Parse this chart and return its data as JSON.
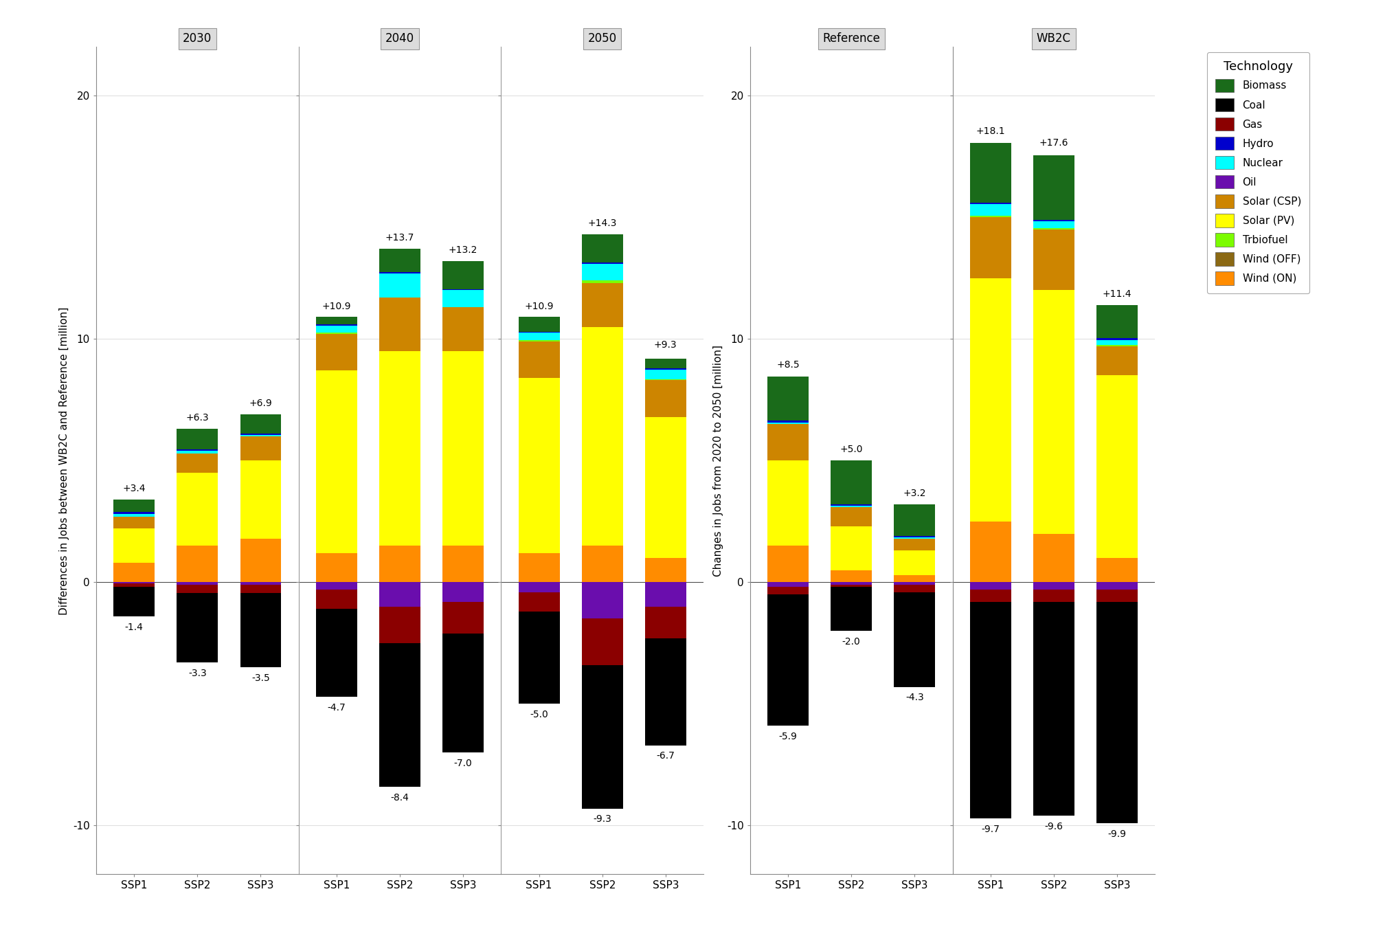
{
  "colors": {
    "Wind (ON)": "#FF8C00",
    "Solar (PV)": "#FFFF00",
    "Solar (CSP)": "#CD8500",
    "Wind (OFF)": "#8B6914",
    "Trbiofuel": "#7CFC00",
    "Nuclear": "#00FFFF",
    "Hydro": "#0000CD",
    "Oil": "#6A0DAD",
    "Gas": "#8B0000",
    "Coal": "#000000",
    "Biomass": "#1A6B1A"
  },
  "pos_tech_order": [
    "Wind (ON)",
    "Solar (PV)",
    "Solar (CSP)",
    "Wind (OFF)",
    "Trbiofuel",
    "Nuclear",
    "Hydro",
    "Biomass"
  ],
  "neg_tech_order": [
    "Oil",
    "Gas",
    "Coal"
  ],
  "panel_A": {
    "facets": [
      "2030",
      "2040",
      "2050"
    ],
    "groups": [
      "SSP1",
      "SSP2",
      "SSP3"
    ],
    "totals_pos": {
      "2030": [
        3.4,
        6.3,
        6.9
      ],
      "2040": [
        10.9,
        13.7,
        13.2
      ],
      "2050": [
        10.9,
        14.3,
        9.3
      ]
    },
    "totals_neg": {
      "2030": [
        -1.4,
        -3.3,
        -3.5
      ],
      "2040": [
        -4.7,
        -8.4,
        -7.0
      ],
      "2050": [
        -5.0,
        -9.3,
        -6.7
      ]
    },
    "pos_stacks": {
      "2030": {
        "SSP1": {
          "Wind (ON)": 0.8,
          "Solar (PV)": 1.4,
          "Solar (CSP)": 0.5,
          "Wind (OFF)": 0.0,
          "Trbiofuel": 0.0,
          "Nuclear": 0.1,
          "Hydro": 0.1,
          "Biomass": 0.5
        },
        "SSP2": {
          "Wind (ON)": 1.5,
          "Solar (PV)": 3.0,
          "Solar (CSP)": 0.8,
          "Wind (OFF)": 0.0,
          "Trbiofuel": 0.0,
          "Nuclear": 0.1,
          "Hydro": 0.05,
          "Biomass": 0.85
        },
        "SSP3": {
          "Wind (ON)": 1.8,
          "Solar (PV)": 3.2,
          "Solar (CSP)": 1.0,
          "Wind (OFF)": 0.0,
          "Trbiofuel": 0.0,
          "Nuclear": 0.05,
          "Hydro": 0.05,
          "Biomass": 0.8
        }
      },
      "2040": {
        "SSP1": {
          "Wind (ON)": 1.2,
          "Solar (PV)": 7.5,
          "Solar (CSP)": 1.5,
          "Wind (OFF)": 0.0,
          "Trbiofuel": 0.05,
          "Nuclear": 0.3,
          "Hydro": 0.05,
          "Biomass": 0.3
        },
        "SSP2": {
          "Wind (ON)": 1.5,
          "Solar (PV)": 8.0,
          "Solar (CSP)": 2.2,
          "Wind (OFF)": 0.0,
          "Trbiofuel": 0.0,
          "Nuclear": 1.0,
          "Hydro": 0.05,
          "Biomass": 0.95
        },
        "SSP3": {
          "Wind (ON)": 1.5,
          "Solar (PV)": 8.0,
          "Solar (CSP)": 1.8,
          "Wind (OFF)": 0.0,
          "Trbiofuel": 0.0,
          "Nuclear": 0.7,
          "Hydro": 0.05,
          "Biomass": 1.15
        }
      },
      "2050": {
        "SSP1": {
          "Wind (ON)": 1.2,
          "Solar (PV)": 7.2,
          "Solar (CSP)": 1.5,
          "Wind (OFF)": 0.0,
          "Trbiofuel": 0.05,
          "Nuclear": 0.3,
          "Hydro": 0.05,
          "Biomass": 0.6
        },
        "SSP2": {
          "Wind (ON)": 1.5,
          "Solar (PV)": 9.0,
          "Solar (CSP)": 1.8,
          "Wind (OFF)": 0.0,
          "Trbiofuel": 0.1,
          "Nuclear": 0.7,
          "Hydro": 0.05,
          "Biomass": 1.15
        },
        "SSP3": {
          "Wind (ON)": 1.0,
          "Solar (PV)": 5.8,
          "Solar (CSP)": 1.5,
          "Wind (OFF)": 0.0,
          "Trbiofuel": 0.05,
          "Nuclear": 0.4,
          "Hydro": 0.05,
          "Biomass": 0.4
        }
      }
    },
    "neg_stacks": {
      "2030": {
        "SSP1": {
          "Oil": -0.05,
          "Gas": -0.15,
          "Coal": -1.2
        },
        "SSP2": {
          "Oil": -0.1,
          "Gas": -0.35,
          "Coal": -2.85
        },
        "SSP3": {
          "Oil": -0.1,
          "Gas": -0.35,
          "Coal": -3.05
        }
      },
      "2040": {
        "SSP1": {
          "Oil": -0.3,
          "Gas": -0.8,
          "Coal": -3.6
        },
        "SSP2": {
          "Oil": -1.0,
          "Gas": -1.5,
          "Coal": -5.9
        },
        "SSP3": {
          "Oil": -0.8,
          "Gas": -1.3,
          "Coal": -4.9
        }
      },
      "2050": {
        "SSP1": {
          "Oil": -0.4,
          "Gas": -0.8,
          "Coal": -3.8
        },
        "SSP2": {
          "Oil": -1.5,
          "Gas": -1.9,
          "Coal": -5.9
        },
        "SSP3": {
          "Oil": -1.0,
          "Gas": -1.3,
          "Coal": -4.4
        }
      }
    }
  },
  "panel_B": {
    "facets": [
      "Reference",
      "WB2C"
    ],
    "groups": [
      "SSP1",
      "SSP2",
      "SSP3"
    ],
    "totals_pos": {
      "Reference": [
        8.5,
        5.0,
        3.2
      ],
      "WB2C": [
        18.1,
        17.6,
        11.4
      ]
    },
    "totals_neg": {
      "Reference": [
        -5.9,
        -2.0,
        -4.3
      ],
      "WB2C": [
        -9.7,
        -9.6,
        -9.9
      ]
    },
    "pos_stacks": {
      "Reference": {
        "SSP1": {
          "Wind (ON)": 1.5,
          "Solar (PV)": 3.5,
          "Solar (CSP)": 1.5,
          "Wind (OFF)": 0.0,
          "Trbiofuel": 0.0,
          "Nuclear": 0.05,
          "Hydro": 0.1,
          "Biomass": 1.8
        },
        "SSP2": {
          "Wind (ON)": 0.5,
          "Solar (PV)": 1.8,
          "Solar (CSP)": 0.8,
          "Wind (OFF)": 0.0,
          "Trbiofuel": 0.0,
          "Nuclear": 0.05,
          "Hydro": 0.05,
          "Biomass": 1.8
        },
        "SSP3": {
          "Wind (ON)": 0.3,
          "Solar (PV)": 1.0,
          "Solar (CSP)": 0.5,
          "Wind (OFF)": 0.0,
          "Trbiofuel": 0.0,
          "Nuclear": 0.05,
          "Hydro": 0.05,
          "Biomass": 1.3
        }
      },
      "WB2C": {
        "SSP1": {
          "Wind (ON)": 2.5,
          "Solar (PV)": 10.0,
          "Solar (CSP)": 2.5,
          "Wind (OFF)": 0.0,
          "Trbiofuel": 0.05,
          "Nuclear": 0.5,
          "Hydro": 0.05,
          "Biomass": 2.45
        },
        "SSP2": {
          "Wind (ON)": 2.0,
          "Solar (PV)": 10.0,
          "Solar (CSP)": 2.5,
          "Wind (OFF)": 0.0,
          "Trbiofuel": 0.05,
          "Nuclear": 0.3,
          "Hydro": 0.05,
          "Biomass": 2.65
        },
        "SSP3": {
          "Wind (ON)": 1.0,
          "Solar (PV)": 7.5,
          "Solar (CSP)": 1.2,
          "Wind (OFF)": 0.0,
          "Trbiofuel": 0.05,
          "Nuclear": 0.2,
          "Hydro": 0.1,
          "Biomass": 1.35
        }
      }
    },
    "neg_stacks": {
      "Reference": {
        "SSP1": {
          "Oil": -0.2,
          "Gas": -0.3,
          "Coal": -5.4
        },
        "SSP2": {
          "Oil": -0.1,
          "Gas": -0.1,
          "Coal": -1.8
        },
        "SSP3": {
          "Oil": -0.1,
          "Gas": -0.3,
          "Coal": -3.9
        }
      },
      "WB2C": {
        "SSP1": {
          "Oil": -0.3,
          "Gas": -0.5,
          "Coal": -8.9
        },
        "SSP2": {
          "Oil": -0.3,
          "Gas": -0.5,
          "Coal": -8.8
        },
        "SSP3": {
          "Oil": -0.3,
          "Gas": -0.5,
          "Coal": -9.1
        }
      }
    }
  },
  "ylim": [
    -12,
    22
  ],
  "yticks": [
    -10,
    0,
    10,
    20
  ],
  "background_color": "#ffffff",
  "facet_header_color": "#DCDCDC",
  "grid_color": "#e0e0e0"
}
